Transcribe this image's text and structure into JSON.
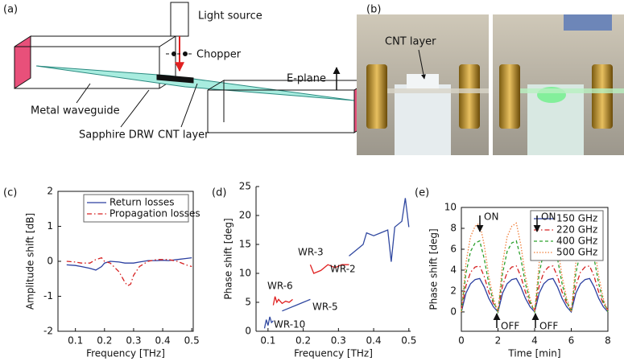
{
  "panels": [
    "(a)",
    "(b)",
    "(c)",
    "(d)",
    "(e)"
  ],
  "diagram": {
    "light_source": "Light source",
    "chopper": "Chopper",
    "e_plane": "E-plane",
    "metal_waveguide": "Metal waveguide",
    "sapphire_drw": "Sapphire DRW",
    "cnt_layer": "CNT layer"
  },
  "photo": {
    "cnt_layer": "CNT layer"
  },
  "chart_data": [
    {
      "type": "line",
      "xlabel": "Frequency [THz]",
      "ylabel": "Amplitude shift [dB]",
      "x": [
        0.07,
        0.1,
        0.12,
        0.15,
        0.17,
        0.19,
        0.2,
        0.22,
        0.25,
        0.27,
        0.28,
        0.29,
        0.3,
        0.32,
        0.35,
        0.38,
        0.4,
        0.42,
        0.45,
        0.48,
        0.5
      ],
      "series": [
        {
          "name": "Return losses",
          "color": "#2b3fa0",
          "linestyle": "solid",
          "values": [
            -0.1,
            -0.12,
            -0.15,
            -0.2,
            -0.25,
            -0.15,
            -0.05,
            0,
            -0.02,
            -0.05,
            -0.05,
            -0.05,
            -0.05,
            -0.02,
            0.02,
            0.02,
            0.03,
            0.02,
            0.05,
            0.08,
            0.1
          ]
        },
        {
          "name": "Propagation losses",
          "color": "#d62020",
          "linestyle": "dashdot",
          "values": [
            0,
            -0.02,
            -0.05,
            -0.05,
            0.05,
            0.1,
            0,
            -0.05,
            -0.3,
            -0.6,
            -0.7,
            -0.65,
            -0.4,
            -0.15,
            0,
            0.05,
            0.05,
            0.05,
            0,
            -0.1,
            -0.15
          ]
        }
      ],
      "xlim": [
        0.04,
        0.505
      ],
      "xticks": [
        0.1,
        0.2,
        0.3,
        0.4,
        0.5
      ],
      "ylim": [
        -2,
        2
      ],
      "yticks": [
        -2,
        -1,
        0,
        1,
        2
      ],
      "legend": "upper right",
      "box": true
    },
    {
      "type": "line",
      "xlabel": "Frequency [THz]",
      "ylabel": "Phase shift [deg]",
      "series": [
        {
          "name": "WR-10",
          "color": "#3048a0",
          "linestyle": "solid",
          "x": [
            0.09,
            0.095,
            0.1,
            0.105,
            0.11,
            0.115
          ],
          "values": [
            0.5,
            2,
            1,
            2.5,
            1.5,
            1.8
          ]
        },
        {
          "name": "WR-6",
          "color": "#e02020",
          "linestyle": "solid",
          "x": [
            0.115,
            0.12,
            0.125,
            0.13,
            0.14,
            0.15,
            0.16,
            0.17
          ],
          "values": [
            4.5,
            6,
            5,
            5.5,
            4.8,
            5.2,
            5,
            5.5
          ]
        },
        {
          "name": "WR-5",
          "color": "#3048a0",
          "linestyle": "solid",
          "x": [
            0.14,
            0.16,
            0.18,
            0.2,
            0.22
          ],
          "values": [
            3.5,
            4,
            4.5,
            5,
            5.5
          ]
        },
        {
          "name": "WR-3",
          "color": "#e02020",
          "linestyle": "solid",
          "x": [
            0.22,
            0.23,
            0.25,
            0.27,
            0.29,
            0.31,
            0.33
          ],
          "values": [
            11.5,
            10,
            10.5,
            11.5,
            11,
            11.5,
            11.5
          ]
        },
        {
          "name": "WR-2",
          "color": "#3048a0",
          "linestyle": "solid",
          "x": [
            0.33,
            0.35,
            0.37,
            0.38,
            0.4,
            0.42,
            0.44,
            0.45,
            0.46,
            0.48,
            0.49,
            0.5
          ],
          "values": [
            13,
            14,
            15,
            17,
            16.5,
            17,
            17.5,
            12,
            18,
            19,
            23,
            18
          ]
        }
      ],
      "xlim": [
        0.066,
        0.505
      ],
      "xticks": [
        0.1,
        0.2,
        0.3,
        0.4,
        0.5
      ],
      "ylim": [
        0,
        25
      ],
      "yticks": [
        0,
        5,
        10,
        15,
        20,
        25
      ],
      "box": false
    },
    {
      "type": "line",
      "xlabel": "Time [min]",
      "ylabel": "Phase shift [deg]",
      "x": [
        0,
        0.25,
        0.5,
        0.75,
        1,
        1.25,
        1.5,
        1.75,
        2,
        2.25,
        2.5,
        2.75,
        3,
        3.25,
        3.5,
        3.75,
        4,
        4.25,
        4.5,
        4.75,
        5,
        5.25,
        5.5,
        5.75,
        6,
        6.25,
        6.5,
        6.75,
        7,
        7.25,
        7.5,
        7.75,
        8
      ],
      "series": [
        {
          "name": "150 GHz",
          "color": "#2b3fa0",
          "linestyle": "solid",
          "values": [
            0,
            1.8,
            2.7,
            3.1,
            3.2,
            2.4,
            1.3,
            0.5,
            0,
            1.8,
            2.7,
            3.1,
            3.2,
            2.4,
            1.3,
            0.5,
            0,
            1.8,
            2.7,
            3.1,
            3.2,
            2.4,
            1.3,
            0.5,
            0,
            1.8,
            2.7,
            3.1,
            3.2,
            2.4,
            1.3,
            0.5,
            0
          ]
        },
        {
          "name": "220 GHz",
          "color": "#d62020",
          "linestyle": "dashdot",
          "values": [
            0.2,
            2.5,
            3.8,
            4.3,
            4.4,
            3.4,
            1.9,
            0.8,
            0.2,
            2.5,
            3.8,
            4.3,
            4.4,
            3.4,
            1.9,
            0.8,
            0.2,
            2.5,
            3.8,
            4.3,
            4.4,
            3.4,
            1.9,
            0.8,
            0.2,
            2.5,
            3.8,
            4.3,
            4.4,
            3.4,
            1.9,
            0.8,
            0.2
          ]
        },
        {
          "name": "400 GHz",
          "color": "#2ca02c",
          "linestyle": "dashed",
          "values": [
            0,
            3.7,
            5.8,
            6.6,
            6.8,
            5.1,
            2.7,
            1,
            0,
            3.7,
            5.8,
            6.6,
            6.8,
            5.1,
            2.7,
            1,
            0,
            3.7,
            5.8,
            6.6,
            6.8,
            5.1,
            2.7,
            1,
            0,
            3.7,
            5.8,
            6.6,
            6.8,
            5.1,
            2.7,
            1,
            0
          ]
        },
        {
          "name": "500 GHz",
          "color": "#f07f3a",
          "linestyle": "dotted",
          "values": [
            0,
            4.7,
            7.2,
            8.2,
            8.5,
            6.4,
            3.4,
            1.3,
            0,
            4.7,
            7.2,
            8.2,
            8.5,
            6.4,
            3.4,
            1.3,
            0,
            4.7,
            7.2,
            8.2,
            8.5,
            6.4,
            3.4,
            1.3,
            0,
            4.7,
            7.2,
            8.2,
            8.5,
            6.4,
            3.4,
            1.3,
            0
          ]
        }
      ],
      "annotations": [
        "ON",
        "ON",
        "OFF",
        "OFF"
      ],
      "xlim": [
        0,
        8
      ],
      "xticks": [
        0,
        2,
        4,
        6,
        8
      ],
      "ylim": [
        -1.85,
        10
      ],
      "yticks": [
        0,
        2,
        4,
        6,
        8,
        10
      ],
      "legend": "upper right",
      "box": true
    }
  ]
}
